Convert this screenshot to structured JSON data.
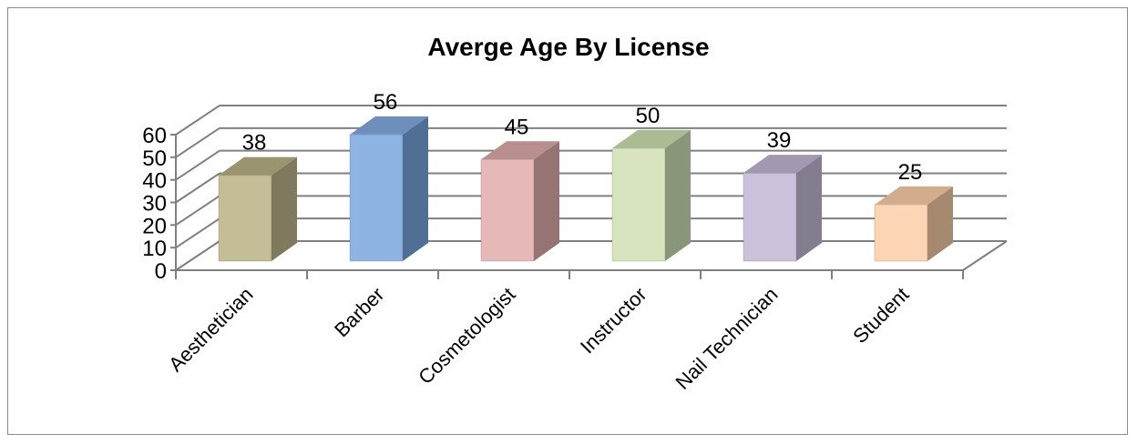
{
  "chart_data": {
    "type": "bar",
    "title": "Averge Age By License",
    "xlabel": "",
    "ylabel": "",
    "categories": [
      "Aesthetician",
      "Barber",
      "Cosmetologist",
      "Instructor",
      "Nail Technician",
      "Student"
    ],
    "values": [
      38,
      56,
      45,
      50,
      39,
      25
    ],
    "data_labels": [
      "38",
      "56",
      "45",
      "50",
      "39",
      "25"
    ],
    "y_ticks": [
      "0",
      "10",
      "20",
      "30",
      "40",
      "50",
      "60"
    ],
    "ylim": [
      0,
      60
    ],
    "grid": true,
    "legend": "none",
    "style": "3d-column",
    "colors": {
      "front": [
        "#c4bd97",
        "#8eb4e3",
        "#e6b9b8",
        "#d7e4bd",
        "#ccc1da",
        "#fcd5b5"
      ],
      "side": [
        "#7f7a5e",
        "#4f6f95",
        "#967474",
        "#8a967a",
        "#847c8f",
        "#a68a70"
      ],
      "top": [
        "#9a9470",
        "#6e8fbc",
        "#b88f8f",
        "#abbb92",
        "#a298b0",
        "#d2ac8c"
      ]
    }
  }
}
